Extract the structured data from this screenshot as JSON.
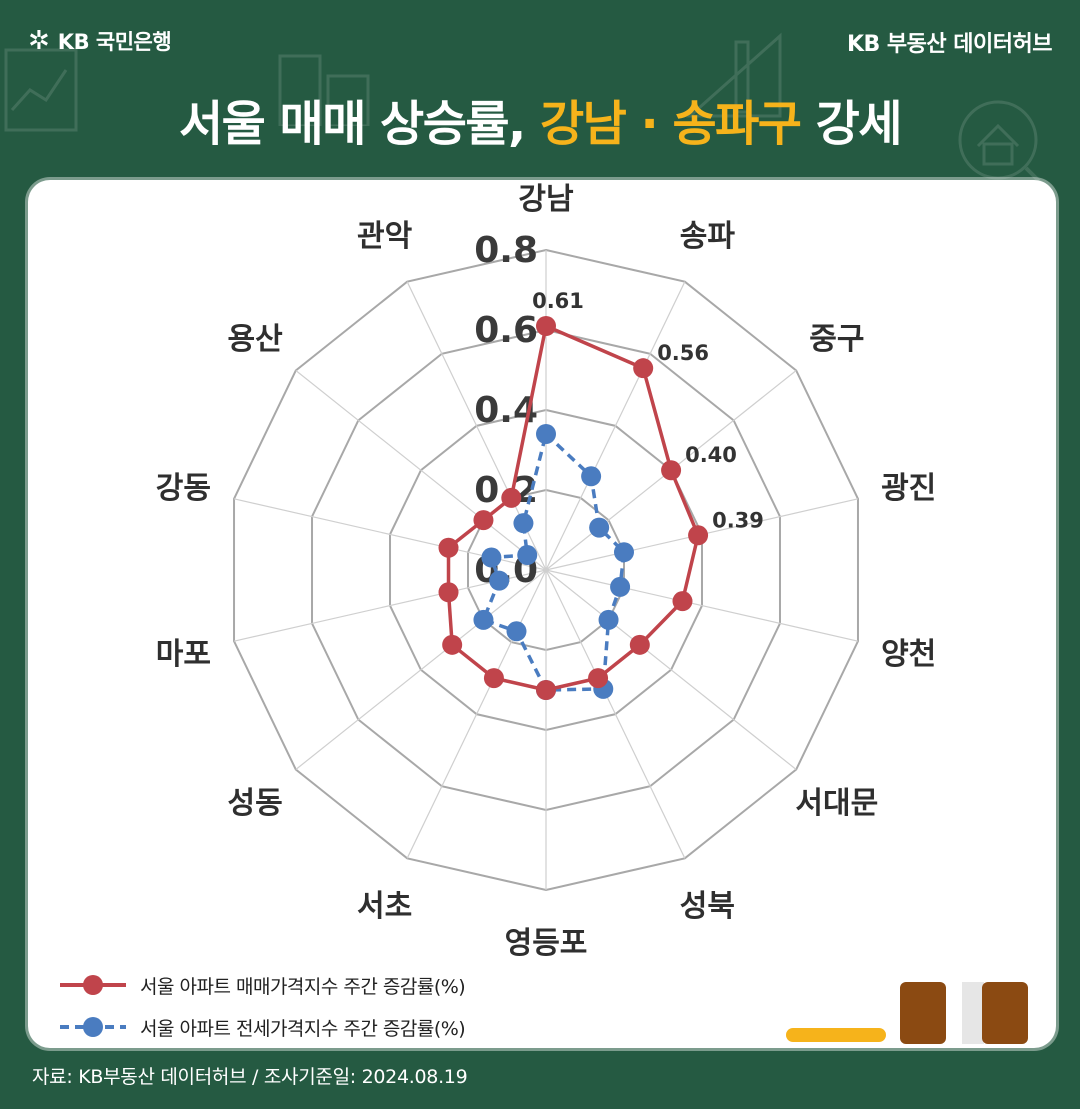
{
  "header": {
    "logo_text": "KB 국민은행",
    "logo_icon": "kb-star-icon",
    "brand": "KB 부동산 데이터허브",
    "title_prefix": "서울 매매 상승률, ",
    "title_highlight": "강남 · 송파구",
    "title_suffix": " 강세"
  },
  "colors": {
    "background": "#255a42",
    "highlight": "#f6b31b",
    "sale_series": "#c0444b",
    "jeonse_series": "#4a7cc0",
    "grid": "#a8a8a8"
  },
  "chart_data": {
    "type": "radar",
    "categories": [
      "강남",
      "송파",
      "중구",
      "광진",
      "양천",
      "서대문",
      "성북",
      "영등포",
      "서초",
      "성동",
      "마포",
      "강동",
      "용산",
      "관악"
    ],
    "radial_ticks": [
      "0.0",
      "0.2",
      "0.4",
      "0.6",
      "0.8"
    ],
    "rlim": [
      0,
      0.8
    ],
    "grid": true,
    "legend_position": "bottom-left",
    "series": [
      {
        "name": "서울 아파트 매매가격지수 주간 증감률(%)",
        "style": "solid",
        "values": [
          0.61,
          0.56,
          0.4,
          0.39,
          0.35,
          0.3,
          0.3,
          0.3,
          0.3,
          0.3,
          0.25,
          0.25,
          0.2,
          0.2
        ],
        "data_labels": [
          "0.61",
          "0.56",
          "0.40",
          "0.39",
          "",
          "",
          "",
          "",
          "",
          "",
          "",
          "",
          "",
          ""
        ]
      },
      {
        "name": "서울 아파트 전세가격지수 주간 증감률(%)",
        "style": "dashed",
        "values": [
          0.34,
          0.26,
          0.17,
          0.2,
          0.19,
          0.2,
          0.33,
          0.3,
          0.17,
          0.2,
          0.12,
          0.14,
          0.06,
          0.13
        ]
      }
    ]
  },
  "footer": {
    "source": "자료: KB부동산 데이터허브 / 조사기준일: 2024.08.19"
  }
}
